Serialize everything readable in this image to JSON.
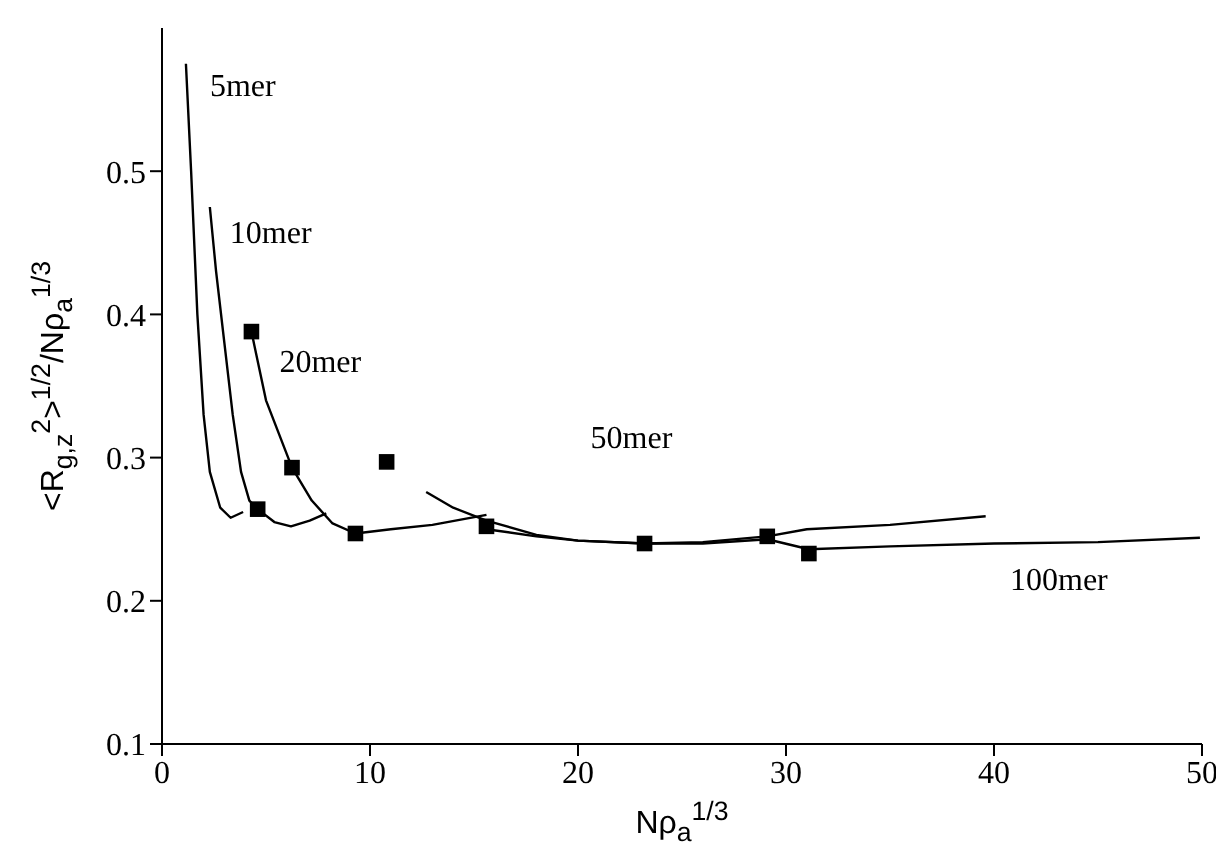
{
  "chart_data": {
    "type": "line",
    "xlabel": "Nρ$_{a}$$^{1/3}$",
    "ylabel": "<R$_{g,z}$$^{2}$>$^{1/2}$/Nρ$_{a}$$^{1/3}$",
    "xlim": [
      0,
      50
    ],
    "xticks": [
      0,
      10,
      20,
      30,
      40,
      50
    ],
    "ylim": [
      0.1,
      0.6
    ],
    "yticks": [
      0.1,
      0.2,
      0.3,
      0.4,
      0.5
    ],
    "grid": false,
    "legend": false,
    "marker": "none",
    "line_style": "solid",
    "series": [
      {
        "name": "5mer",
        "color": "#000000",
        "x": [
          1.15,
          1.4,
          1.7,
          2.0,
          2.3,
          2.8,
          3.3,
          3.9
        ],
        "values": [
          0.575,
          0.5,
          0.4,
          0.33,
          0.29,
          0.265,
          0.258,
          0.262
        ]
      },
      {
        "name": "10mer",
        "color": "#000000",
        "x": [
          2.3,
          2.6,
          3.0,
          3.4,
          3.8,
          4.2,
          4.6,
          5.4,
          6.2,
          7.1,
          7.9
        ],
        "values": [
          0.475,
          0.43,
          0.38,
          0.33,
          0.29,
          0.27,
          0.264,
          0.255,
          0.252,
          0.256,
          0.261
        ]
      },
      {
        "name": "20mer",
        "color": "#000000",
        "x": [
          4.3,
          5.0,
          6.25,
          7.2,
          8.2,
          9.3,
          11,
          13,
          15.6
        ],
        "values": [
          0.388,
          0.34,
          0.293,
          0.27,
          0.254,
          0.247,
          0.25,
          0.253,
          0.26
        ]
      },
      {
        "name": "50mer",
        "color": "#000000",
        "x": [
          12.7,
          14,
          15.6,
          18,
          20,
          23.2,
          26,
          29.1,
          31,
          35,
          39.6
        ],
        "values": [
          0.276,
          0.265,
          0.256,
          0.246,
          0.242,
          0.24,
          0.241,
          0.245,
          0.25,
          0.253,
          0.259
        ]
      },
      {
        "name": "100mer",
        "color": "#000000",
        "x": [
          15.6,
          18,
          20,
          23.2,
          26,
          29.1,
          31.1,
          35,
          40,
          45,
          49.9
        ],
        "values": [
          0.25,
          0.245,
          0.242,
          0.24,
          0.24,
          0.243,
          0.236,
          0.238,
          0.24,
          0.241,
          0.244
        ]
      },
      {
        "type": "scatter",
        "marker": "square",
        "color": "#000000",
        "x": [
          4.3,
          6.25,
          4.6,
          9.3,
          10.8,
          15.6,
          23.2,
          29.1,
          31.1
        ],
        "values": [
          0.388,
          0.293,
          0.264,
          0.247,
          0.297,
          0.252,
          0.24,
          0.245,
          0.233
        ]
      }
    ]
  }
}
